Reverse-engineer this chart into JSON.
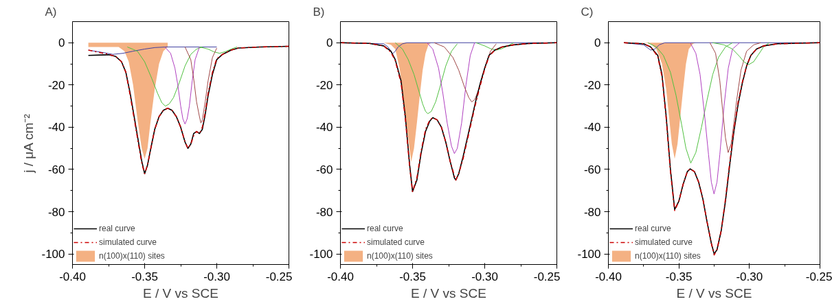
{
  "chart_data": [
    {
      "type": "line",
      "title": "A)",
      "xlabel": "E / V vs SCE",
      "ylabel": "j / μA cm⁻²",
      "legend": "bottom left",
      "grid": false,
      "xlim": [
        -0.4,
        -0.25
      ],
      "ylim": [
        -105,
        10
      ],
      "xticks": [
        {
          "value": -0.4,
          "label": "-0.40"
        },
        {
          "value": -0.375,
          "label": null
        },
        {
          "value": -0.35,
          "label": "-0.35"
        },
        {
          "value": -0.325,
          "label": null
        },
        {
          "value": -0.3,
          "label": "-0.30"
        },
        {
          "value": -0.275,
          "label": null
        },
        {
          "value": -0.25,
          "label": "-0.25"
        }
      ],
      "yticks": [
        -100,
        {
          "value": -90,
          "label": null
        },
        -80,
        {
          "value": -70,
          "label": null
        },
        -60,
        {
          "value": -50,
          "label": null
        },
        -40,
        {
          "value": -30,
          "label": null
        },
        -20,
        {
          "value": -10,
          "label": null
        },
        0
      ],
      "series": [
        {
          "name": "n(100)x(110) sites",
          "type": "area",
          "color": "#f4b183",
          "x": [
            -0.389,
            -0.368,
            -0.364,
            -0.361,
            -0.358,
            -0.355,
            -0.352,
            -0.35,
            -0.348,
            -0.346,
            -0.343,
            -0.34,
            -0.337,
            -0.334
          ],
          "values": [
            -2,
            -2,
            -4,
            -9,
            -20,
            -36,
            -50,
            -55,
            -50,
            -38,
            -22,
            -10,
            -4,
            -2
          ]
        },
        {
          "type": "line",
          "color": "#4040a0",
          "x": [
            -0.389,
            -0.38,
            -0.372,
            -0.365,
            -0.358,
            -0.35,
            -0.343,
            -0.335,
            -0.3
          ],
          "values": [
            -3.5,
            -4.5,
            -5.5,
            -5,
            -4,
            -3,
            -2.3,
            -2,
            -2
          ]
        },
        {
          "type": "line",
          "color": "#50c040",
          "x": [
            -0.362,
            -0.355,
            -0.35,
            -0.345,
            -0.341,
            -0.338,
            -0.3356,
            -0.333,
            -0.33,
            -0.326,
            -0.322,
            -0.318,
            -0.314,
            -0.31
          ],
          "values": [
            -2,
            -4,
            -9,
            -17,
            -24,
            -28.5,
            -30,
            -29,
            -26,
            -19,
            -11,
            -5.5,
            -3,
            -2
          ]
        },
        {
          "type": "line",
          "color": "#50c040",
          "x": [
            -0.312,
            -0.306,
            -0.302,
            -0.298,
            -0.294,
            -0.29,
            -0.286
          ],
          "values": [
            -2,
            -3,
            -4.3,
            -5,
            -4.2,
            -3,
            -2
          ]
        },
        {
          "type": "line",
          "color": "#b040c0",
          "x": [
            -0.336,
            -0.332,
            -0.329,
            -0.327,
            -0.325,
            -0.3235,
            -0.322,
            -0.3205,
            -0.319,
            -0.317,
            -0.315,
            -0.312
          ],
          "values": [
            -2,
            -5,
            -12,
            -20,
            -30,
            -36,
            -38.5,
            -36,
            -30,
            -18,
            -8,
            -2
          ]
        },
        {
          "type": "line",
          "color": "#a04848",
          "x": [
            -0.322,
            -0.318,
            -0.316,
            -0.314,
            -0.312,
            -0.311,
            -0.31,
            -0.308,
            -0.306,
            -0.303,
            -0.3
          ],
          "values": [
            -2,
            -8,
            -17,
            -28,
            -35,
            -38,
            -36.5,
            -28,
            -18,
            -7,
            -2.5
          ]
        },
        {
          "name": "real curve",
          "type": "line",
          "color": "#000000",
          "x": [
            -0.389,
            -0.38,
            -0.375,
            -0.37,
            -0.366,
            -0.363,
            -0.36,
            -0.357,
            -0.354,
            -0.352,
            -0.35,
            -0.348,
            -0.346,
            -0.343,
            -0.34,
            -0.337,
            -0.334,
            -0.331,
            -0.328,
            -0.325,
            -0.322,
            -0.32,
            -0.318,
            -0.316,
            -0.314,
            -0.312,
            -0.31,
            -0.308,
            -0.306,
            -0.303,
            -0.3,
            -0.296,
            -0.29,
            -0.285,
            -0.27,
            -0.25
          ],
          "values": [
            -6,
            -5.8,
            -5.7,
            -6.5,
            -9,
            -14,
            -24,
            -36,
            -48,
            -56,
            -62,
            -58,
            -51,
            -41,
            -35,
            -32,
            -31,
            -32,
            -35,
            -40,
            -47,
            -50,
            -48,
            -43,
            -42,
            -43,
            -41,
            -34,
            -25,
            -15,
            -8,
            -5.5,
            -3.5,
            -2.5,
            -2,
            -1.7
          ]
        },
        {
          "name": "simulated curve",
          "type": "line",
          "line_style": "dashdot",
          "color": "#cc0000",
          "x": [
            -0.389,
            -0.38,
            -0.375,
            -0.37,
            -0.366,
            -0.363,
            -0.36,
            -0.357,
            -0.354,
            -0.352,
            -0.35,
            -0.348,
            -0.346,
            -0.343,
            -0.34,
            -0.337,
            -0.334,
            -0.331,
            -0.328,
            -0.325,
            -0.322,
            -0.32,
            -0.318,
            -0.316,
            -0.314,
            -0.312,
            -0.31,
            -0.308,
            -0.306,
            -0.303,
            -0.3,
            -0.296,
            -0.29,
            -0.285,
            -0.27,
            -0.25
          ],
          "values": [
            -3.5,
            -4.8,
            -5.5,
            -6.5,
            -9,
            -14,
            -25,
            -37,
            -49,
            -57,
            -62,
            -58,
            -51,
            -41,
            -35,
            -32,
            -31,
            -32,
            -35,
            -40,
            -47,
            -50,
            -48,
            -44,
            -42,
            -43,
            -40,
            -33,
            -24,
            -14,
            -7.5,
            -5.5,
            -3.5,
            -2.5,
            -2,
            -1.7
          ]
        }
      ]
    },
    {
      "type": "line",
      "title": "B)",
      "xlabel": "E / V vs SCE",
      "legend": "bottom left",
      "grid": false,
      "xlim": [
        -0.4,
        -0.25
      ],
      "ylim": [
        -105,
        10
      ],
      "xticks": [
        {
          "value": -0.4,
          "label": "-0.40"
        },
        {
          "value": -0.375,
          "label": null
        },
        {
          "value": -0.35,
          "label": "-0.35"
        },
        {
          "value": -0.325,
          "label": null
        },
        {
          "value": -0.3,
          "label": "-0.30"
        },
        {
          "value": -0.275,
          "label": null
        },
        {
          "value": -0.25,
          "label": "-0.25"
        }
      ],
      "yticks": [
        -100,
        {
          "value": -90,
          "label": null
        },
        -80,
        {
          "value": -70,
          "label": null
        },
        -60,
        {
          "value": -50,
          "label": null
        },
        -40,
        {
          "value": -30,
          "label": null
        },
        -20,
        {
          "value": -10,
          "label": null
        },
        0
      ],
      "series": [
        {
          "name": "n(100)x(110) sites",
          "type": "area",
          "color": "#f4b183",
          "x": [
            -0.37,
            -0.365,
            -0.362,
            -0.359,
            -0.356,
            -0.353,
            -0.351,
            -0.349,
            -0.347,
            -0.345,
            -0.343,
            -0.341,
            -0.339,
            -0.337
          ],
          "values": [
            0,
            -1,
            -3,
            -12,
            -28,
            -45,
            -56.5,
            -50,
            -38,
            -25,
            -13,
            -5,
            -1,
            0
          ]
        },
        {
          "type": "line",
          "color": "#4040a0",
          "x": [
            -0.4,
            -0.37,
            -0.367,
            -0.365,
            -0.364,
            -0.362,
            -0.36,
            -0.357,
            -0.354,
            -0.25
          ],
          "values": [
            0,
            -0.5,
            -2,
            -4,
            -5.3,
            -4,
            -2,
            -0.5,
            0,
            0
          ]
        },
        {
          "type": "line",
          "color": "#50c040",
          "x": [
            -0.362,
            -0.357,
            -0.353,
            -0.349,
            -0.346,
            -0.343,
            -0.341,
            -0.3394,
            -0.337,
            -0.334,
            -0.331,
            -0.327,
            -0.323,
            -0.319
          ],
          "values": [
            0,
            -3,
            -8,
            -15,
            -22,
            -29,
            -32.5,
            -33.6,
            -32.5,
            -28,
            -21,
            -11,
            -4,
            -0.5
          ]
        },
        {
          "type": "line",
          "color": "#50c040",
          "x": [
            -0.306,
            -0.3,
            -0.296,
            -0.292,
            -0.288,
            -0.284,
            -0.28
          ],
          "values": [
            0,
            -1.5,
            -2.8,
            -3.5,
            -2.8,
            -1.5,
            0
          ]
        },
        {
          "type": "line",
          "color": "#b040c0",
          "x": [
            -0.34,
            -0.336,
            -0.332,
            -0.329,
            -0.326,
            -0.323,
            -0.321,
            -0.319,
            -0.316,
            -0.313,
            -0.31,
            -0.307
          ],
          "values": [
            0,
            -3,
            -12,
            -24,
            -38,
            -49,
            -52.5,
            -50,
            -38,
            -20,
            -6,
            0
          ]
        },
        {
          "type": "line",
          "color": "#a04848",
          "x": [
            -0.335,
            -0.328,
            -0.322,
            -0.318,
            -0.314,
            -0.311,
            -0.309,
            -0.307,
            -0.304,
            -0.3,
            -0.296,
            -0.292
          ],
          "values": [
            0,
            -2,
            -7,
            -13,
            -21,
            -26,
            -28,
            -27,
            -22,
            -12,
            -4,
            -0.5
          ]
        },
        {
          "name": "real curve",
          "type": "line",
          "color": "#000000",
          "x": [
            -0.4,
            -0.38,
            -0.37,
            -0.365,
            -0.362,
            -0.358,
            -0.355,
            -0.352,
            -0.35,
            -0.347,
            -0.344,
            -0.341,
            -0.338,
            -0.336,
            -0.333,
            -0.33,
            -0.327,
            -0.324,
            -0.321,
            -0.32,
            -0.318,
            -0.315,
            -0.312,
            -0.309,
            -0.306,
            -0.303,
            -0.3,
            -0.297,
            -0.293,
            -0.288,
            -0.28,
            -0.27,
            -0.25
          ],
          "values": [
            0,
            -0.3,
            -1.5,
            -4,
            -8,
            -18,
            -35,
            -58,
            -70.5,
            -65,
            -52,
            -42,
            -37,
            -35.5,
            -36.5,
            -40,
            -47,
            -56,
            -64,
            -65,
            -62,
            -54,
            -45,
            -36,
            -27,
            -19,
            -12,
            -6,
            -3.5,
            -2,
            -1,
            -0.4,
            0
          ]
        },
        {
          "name": "simulated curve",
          "type": "line",
          "line_style": "dashdot",
          "color": "#cc0000",
          "x": [
            -0.4,
            -0.38,
            -0.37,
            -0.365,
            -0.362,
            -0.358,
            -0.355,
            -0.352,
            -0.35,
            -0.347,
            -0.344,
            -0.341,
            -0.338,
            -0.336,
            -0.333,
            -0.33,
            -0.327,
            -0.324,
            -0.321,
            -0.32,
            -0.318,
            -0.315,
            -0.312,
            -0.309,
            -0.306,
            -0.303,
            -0.3,
            -0.297,
            -0.293,
            -0.288,
            -0.28,
            -0.27,
            -0.25
          ],
          "values": [
            0,
            -0.3,
            -1.5,
            -4.5,
            -8.5,
            -19,
            -36,
            -59,
            -70.5,
            -64,
            -51,
            -41,
            -36.5,
            -35.5,
            -36.5,
            -40,
            -47,
            -56,
            -63,
            -65,
            -62,
            -55,
            -46,
            -37,
            -28,
            -20,
            -12.5,
            -6.5,
            -3.5,
            -2,
            -1,
            -0.4,
            0
          ]
        }
      ]
    },
    {
      "type": "line",
      "title": "C)",
      "xlabel": "E / V vs SCE",
      "legend": "bottom left",
      "grid": false,
      "xlim": [
        -0.4,
        -0.25
      ],
      "ylim": [
        -105,
        10
      ],
      "xticks": [
        {
          "value": -0.4,
          "label": "-0.40"
        },
        {
          "value": -0.375,
          "label": null
        },
        {
          "value": -0.35,
          "label": "-0.35"
        },
        {
          "value": -0.325,
          "label": null
        },
        {
          "value": -0.3,
          "label": "-0.30"
        },
        {
          "value": -0.275,
          "label": null
        },
        {
          "value": -0.25,
          "label": "-0.25"
        }
      ],
      "yticks": [
        -100,
        {
          "value": -90,
          "label": null
        },
        -80,
        {
          "value": -70,
          "label": null
        },
        -60,
        {
          "value": -50,
          "label": null
        },
        -40,
        {
          "value": -30,
          "label": null
        },
        -20,
        {
          "value": -10,
          "label": null
        },
        0
      ],
      "series": [
        {
          "name": "n(100)x(110) sites",
          "type": "area",
          "color": "#f4b183",
          "x": [
            -0.375,
            -0.37,
            -0.366,
            -0.362,
            -0.359,
            -0.357,
            -0.355,
            -0.353,
            -0.351,
            -0.349,
            -0.347,
            -0.345,
            -0.343,
            -0.34,
            -0.338
          ],
          "values": [
            0,
            -0.5,
            -3,
            -10,
            -22,
            -35,
            -48,
            -55,
            -48,
            -35,
            -22,
            -10,
            -3,
            -0.5,
            0
          ]
        },
        {
          "type": "line",
          "color": "#4040a0",
          "x": [
            -0.389,
            -0.375,
            -0.372,
            -0.37,
            -0.367,
            -0.364,
            -0.36,
            -0.25
          ],
          "values": [
            0,
            -1,
            -2.5,
            -3.5,
            -3,
            -1,
            0,
            0
          ]
        },
        {
          "type": "line",
          "color": "#50c040",
          "x": [
            -0.372,
            -0.366,
            -0.361,
            -0.356,
            -0.352,
            -0.348,
            -0.345,
            -0.3416,
            -0.338,
            -0.334,
            -0.33,
            -0.326,
            -0.322,
            -0.317,
            -0.312
          ],
          "values": [
            0,
            -2,
            -6,
            -14,
            -25,
            -39,
            -50,
            -57,
            -52,
            -40,
            -27,
            -15,
            -7,
            -2,
            0
          ]
        },
        {
          "type": "line",
          "color": "#b040c0",
          "x": [
            -0.342,
            -0.338,
            -0.335,
            -0.332,
            -0.329,
            -0.327,
            -0.3251,
            -0.323,
            -0.321,
            -0.318,
            -0.315,
            -0.312,
            -0.307
          ],
          "values": [
            0,
            -5,
            -15,
            -33,
            -53,
            -66,
            -71.6,
            -66,
            -53,
            -30,
            -12,
            -3,
            0
          ]
        },
        {
          "type": "line",
          "color": "#a04848",
          "x": [
            -0.328,
            -0.324,
            -0.321,
            -0.319,
            -0.317,
            -0.3151,
            -0.313,
            -0.311,
            -0.309,
            -0.306,
            -0.302,
            -0.297,
            -0.292
          ],
          "values": [
            0,
            -5,
            -18,
            -32,
            -45,
            -52,
            -48,
            -38,
            -27,
            -13,
            -4,
            -1,
            0
          ]
        },
        {
          "type": "line",
          "color": "#50c040",
          "x": [
            -0.326,
            -0.318,
            -0.312,
            -0.307,
            -0.304,
            -0.3006,
            -0.297,
            -0.294,
            -0.29,
            -0.286
          ],
          "values": [
            0,
            -1,
            -3,
            -6.5,
            -9,
            -10.4,
            -9,
            -6,
            -2,
            0
          ]
        },
        {
          "name": "real curve",
          "type": "line",
          "color": "#000000",
          "x": [
            -0.389,
            -0.375,
            -0.37,
            -0.365,
            -0.362,
            -0.359,
            -0.356,
            -0.353,
            -0.35,
            -0.347,
            -0.344,
            -0.342,
            -0.339,
            -0.336,
            -0.333,
            -0.33,
            -0.327,
            -0.325,
            -0.323,
            -0.32,
            -0.317,
            -0.314,
            -0.311,
            -0.308,
            -0.305,
            -0.302,
            -0.299,
            -0.295,
            -0.29,
            -0.28,
            -0.25
          ],
          "values": [
            0,
            -0.5,
            -2,
            -6,
            -15,
            -35,
            -60,
            -79,
            -75,
            -67,
            -61,
            -59.7,
            -61,
            -66,
            -74,
            -85,
            -95,
            -100,
            -98,
            -89,
            -75,
            -58,
            -42,
            -29,
            -19,
            -11,
            -6,
            -3,
            -1.5,
            -0.5,
            0
          ]
        },
        {
          "name": "simulated curve",
          "type": "line",
          "line_style": "dashdot",
          "color": "#cc0000",
          "x": [
            -0.389,
            -0.375,
            -0.37,
            -0.365,
            -0.362,
            -0.359,
            -0.356,
            -0.353,
            -0.35,
            -0.347,
            -0.344,
            -0.342,
            -0.339,
            -0.336,
            -0.333,
            -0.33,
            -0.327,
            -0.325,
            -0.323,
            -0.32,
            -0.317,
            -0.314,
            -0.311,
            -0.308,
            -0.305,
            -0.302,
            -0.299,
            -0.295,
            -0.29,
            -0.28,
            -0.25
          ],
          "values": [
            0,
            -0.5,
            -2,
            -6.5,
            -16,
            -36,
            -61,
            -79.5,
            -75,
            -67,
            -61,
            -59.7,
            -61,
            -66,
            -74,
            -85,
            -95,
            -100.5,
            -98,
            -89,
            -74,
            -57,
            -41,
            -28,
            -18.5,
            -11,
            -6,
            -3,
            -1.5,
            -0.5,
            0
          ]
        }
      ]
    }
  ]
}
